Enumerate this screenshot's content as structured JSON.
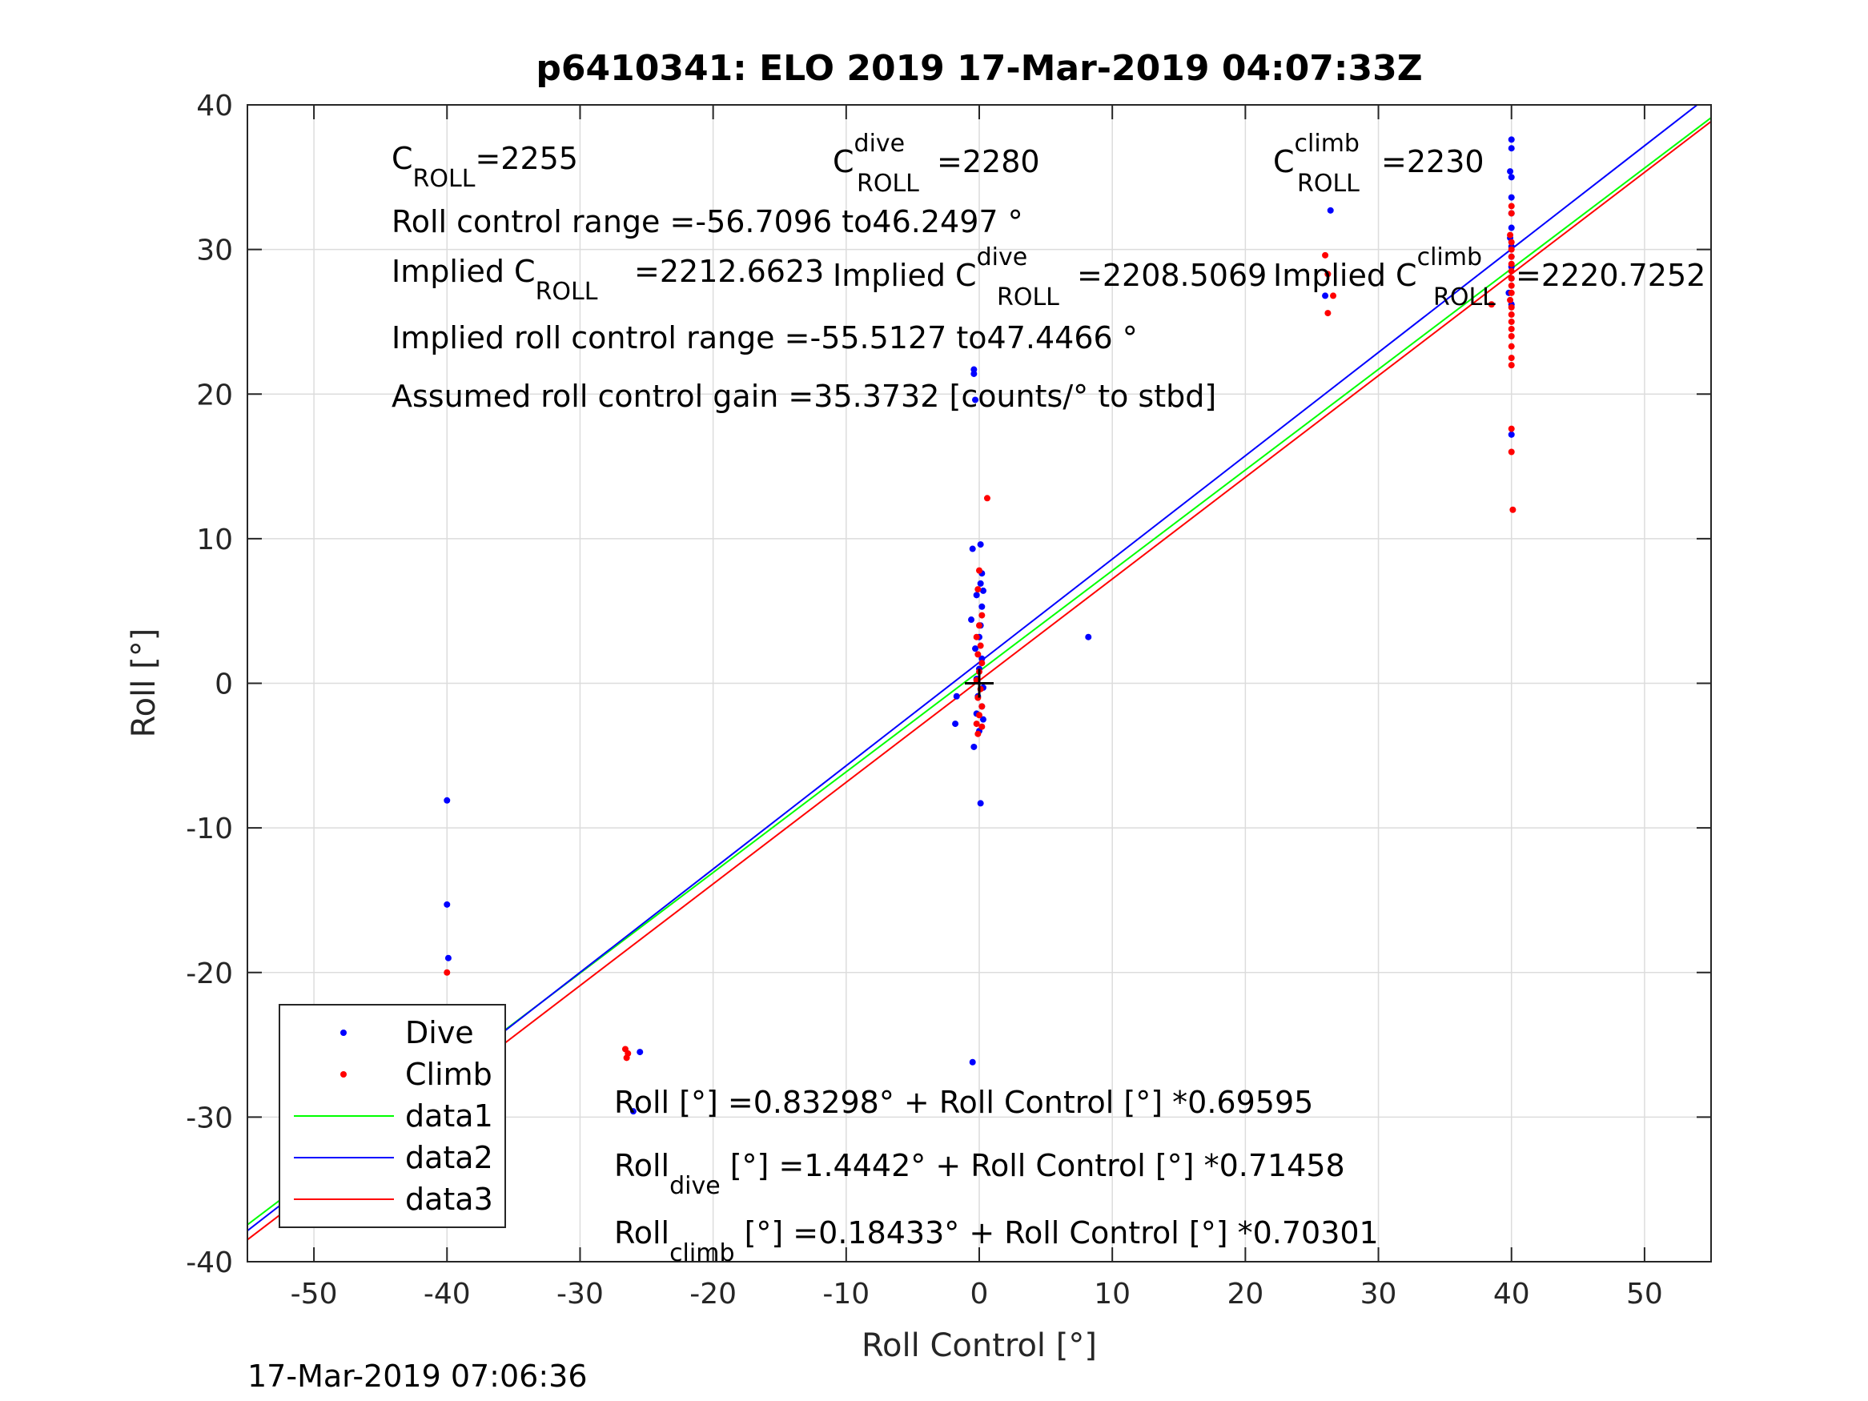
{
  "chart_data": {
    "type": "scatter",
    "title": "p6410341: ELO 2019 17-Mar-2019 04:07:33Z",
    "xlabel": "Roll Control [°]",
    "ylabel": "Roll [°]",
    "xlim": [
      -55,
      55
    ],
    "ylim": [
      -40,
      40
    ],
    "xticks": [
      -50,
      -40,
      -30,
      -20,
      -10,
      0,
      10,
      20,
      30,
      40,
      50
    ],
    "yticks": [
      -40,
      -30,
      -20,
      -10,
      0,
      10,
      20,
      30,
      40
    ],
    "grid": true,
    "legend_position": "bottom-left",
    "legend": [
      "Dive",
      "Climb",
      "data1",
      "data2",
      "data3"
    ],
    "colors": {
      "dive": "#0000ff",
      "climb": "#ff0000",
      "data1": "#00ff00",
      "data2": "#0000ff",
      "data3": "#ff0000",
      "origin": "#000000"
    },
    "series": [
      {
        "name": "Dive",
        "kind": "points",
        "color": "#0000ff",
        "points": [
          [
            -40,
            -8.1
          ],
          [
            -40,
            -15.3
          ],
          [
            -39.9,
            -19
          ],
          [
            -40,
            -22.5
          ],
          [
            -40,
            -24
          ],
          [
            -40,
            -25
          ],
          [
            -39.8,
            -25.8
          ],
          [
            -40,
            -26.5
          ],
          [
            -40,
            -27.3
          ],
          [
            -40,
            -28.2
          ],
          [
            -40,
            -29.5
          ],
          [
            -40,
            -30.6
          ],
          [
            -40,
            -31.2
          ],
          [
            -25.5,
            -25.5
          ],
          [
            -26,
            -29.6
          ],
          [
            -0.4,
            21.7
          ],
          [
            -0.4,
            21.4
          ],
          [
            -0.3,
            19.6
          ],
          [
            -0.5,
            9.3
          ],
          [
            0.1,
            9.6
          ],
          [
            0.2,
            7.6
          ],
          [
            0.1,
            6.9
          ],
          [
            0.3,
            6.4
          ],
          [
            -0.2,
            6.1
          ],
          [
            0.2,
            5.3
          ],
          [
            -0.6,
            4.4
          ],
          [
            0.1,
            4.0
          ],
          [
            0,
            3.2
          ],
          [
            -0.3,
            2.4
          ],
          [
            0.2,
            1.7
          ],
          [
            0,
            1.0
          ],
          [
            -0.2,
            0.3
          ],
          [
            0.3,
            -0.3
          ],
          [
            -0.1,
            -0.9
          ],
          [
            -1.7,
            -0.9
          ],
          [
            0.2,
            -1.6
          ],
          [
            -0.2,
            -2.1
          ],
          [
            0.3,
            -2.5
          ],
          [
            -1.8,
            -2.8
          ],
          [
            0,
            -3.3
          ],
          [
            -0.4,
            -4.4
          ],
          [
            0.1,
            -8.3
          ],
          [
            -0.5,
            -26.2
          ],
          [
            8.2,
            3.2
          ],
          [
            26.4,
            32.7
          ],
          [
            26,
            26.8
          ],
          [
            40,
            37.6
          ],
          [
            40,
            37
          ],
          [
            39.9,
            35.4
          ],
          [
            40,
            35
          ],
          [
            40,
            33.6
          ],
          [
            40,
            32.5
          ],
          [
            40,
            31.5
          ],
          [
            39.9,
            30.8
          ],
          [
            40,
            30.2
          ],
          [
            40,
            29.5
          ],
          [
            40,
            28.8
          ],
          [
            40,
            28
          ],
          [
            39.8,
            27
          ],
          [
            40,
            26.2
          ],
          [
            40,
            17.2
          ]
        ]
      },
      {
        "name": "Climb",
        "kind": "points",
        "color": "#ff0000",
        "points": [
          [
            -40,
            -20
          ],
          [
            -40,
            -23.5
          ],
          [
            -40,
            -24.5
          ],
          [
            -40,
            -25.5
          ],
          [
            -40,
            -26.5
          ],
          [
            -40.1,
            -27.5
          ],
          [
            -40,
            -28.3
          ],
          [
            -40,
            -29.2
          ],
          [
            -40,
            -30
          ],
          [
            -40,
            -31.5
          ],
          [
            -26.6,
            -25.3
          ],
          [
            -26.4,
            -25.6
          ],
          [
            -26.5,
            -25.9
          ],
          [
            0.6,
            12.8
          ],
          [
            0,
            7.8
          ],
          [
            -0.1,
            6.5
          ],
          [
            0.2,
            4.7
          ],
          [
            0,
            4.0
          ],
          [
            -0.2,
            3.2
          ],
          [
            0.1,
            2.6
          ],
          [
            -0.1,
            2.0
          ],
          [
            0.2,
            1.4
          ],
          [
            0,
            0.8
          ],
          [
            -0.2,
            0.2
          ],
          [
            0.1,
            -0.4
          ],
          [
            -0.1,
            -1.0
          ],
          [
            0.2,
            -1.6
          ],
          [
            0,
            -2.2
          ],
          [
            -0.2,
            -2.8
          ],
          [
            0.2,
            -3.0
          ],
          [
            -0.1,
            -3.5
          ],
          [
            26,
            29.6
          ],
          [
            26.2,
            28.3
          ],
          [
            26.6,
            26.8
          ],
          [
            26.2,
            25.6
          ],
          [
            40,
            33
          ],
          [
            40,
            32.5
          ],
          [
            39.9,
            31
          ],
          [
            40,
            30.5
          ],
          [
            40,
            30
          ],
          [
            40,
            29.5
          ],
          [
            40,
            29
          ],
          [
            40,
            28.5
          ],
          [
            40,
            28
          ],
          [
            40,
            27.5
          ],
          [
            40,
            27
          ],
          [
            39.9,
            26.5
          ],
          [
            40,
            26
          ],
          [
            40,
            25.5
          ],
          [
            40,
            25
          ],
          [
            40,
            24.5
          ],
          [
            40,
            24
          ],
          [
            40,
            23.3
          ],
          [
            40,
            22.5
          ],
          [
            40,
            22
          ],
          [
            38.5,
            26.2
          ],
          [
            40,
            17.6
          ],
          [
            40,
            16
          ],
          [
            40.1,
            12
          ]
        ]
      },
      {
        "name": "data1",
        "kind": "line",
        "color": "#00ff00",
        "intercept": 0.83298,
        "slope": 0.69595
      },
      {
        "name": "data2",
        "kind": "line",
        "color": "#0000ff",
        "intercept": 1.4442,
        "slope": 0.71458
      },
      {
        "name": "data3",
        "kind": "line",
        "color": "#ff0000",
        "intercept": 0.18433,
        "slope": 0.70301
      }
    ],
    "origin_marker": [
      0,
      0
    ],
    "annotations": {
      "c_roll": {
        "base": "C",
        "sub": "ROLL",
        "value": "=2255"
      },
      "c_roll_dive": {
        "base": "C",
        "sup": "dive",
        "sub": "ROLL",
        "value": "=2280"
      },
      "c_roll_climb": {
        "base": "C",
        "sup": "climb",
        "sub": "ROLL",
        "value": "=2230"
      },
      "roll_control_range": "Roll control range =-56.7096 to46.2497 °",
      "implied_c_roll": {
        "base": "Implied C",
        "sub": "ROLL",
        "value": "=2212.6623"
      },
      "implied_c_roll_dive": {
        "base": "Implied C",
        "sup": "dive",
        "sub": "ROLL",
        "value": "=2208.5069"
      },
      "implied_c_roll_climb": {
        "base": "Implied C",
        "sup": "climb",
        "sub": "ROLL",
        "value": "=2220.7252"
      },
      "implied_range": "Implied roll control range =-55.5127 to47.4466 °",
      "gain": "Assumed roll control gain =35.3732 [counts/° to stbd]",
      "fit_all": "Roll [°] =0.83298° + Roll Control [°] *0.69595",
      "fit_dive": {
        "base": "Roll",
        "sub": "dive",
        "rest": " [°] =1.4442° + Roll Control [°] *0.71458"
      },
      "fit_climb": {
        "base": "Roll",
        "sub": "climb",
        "rest": " [°] =0.18433° + Roll Control [°] *0.70301"
      }
    }
  },
  "footer": {
    "timestamp": "17-Mar-2019 07:06:36"
  }
}
